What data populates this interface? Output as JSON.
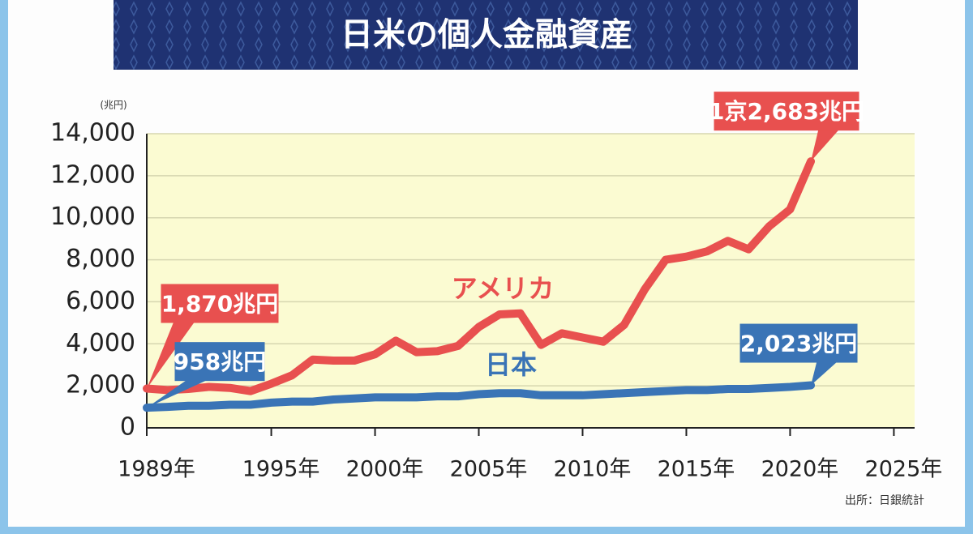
{
  "chart_data": {
    "type": "line",
    "title": "日米の個人金融資産",
    "y_label": "(兆円)",
    "source": "出所：日銀統計",
    "x": [
      1989,
      1990,
      1991,
      1992,
      1993,
      1994,
      1995,
      1996,
      1997,
      1998,
      1999,
      2000,
      2001,
      2002,
      2003,
      2004,
      2005,
      2006,
      2007,
      2008,
      2009,
      2010,
      2011,
      2012,
      2013,
      2014,
      2015,
      2016,
      2017,
      2018,
      2019,
      2020,
      2021
    ],
    "series": [
      {
        "name": "アメリカ",
        "color": "#e8504f",
        "values": [
          1870,
          1800,
          1850,
          1950,
          1900,
          1750,
          2100,
          2500,
          3250,
          3200,
          3200,
          3500,
          4150,
          3600,
          3650,
          3900,
          4800,
          5400,
          5450,
          3950,
          4500,
          4300,
          4100,
          4900,
          6600,
          8000,
          8150,
          8400,
          8900,
          8500,
          9600,
          10400,
          12683
        ],
        "value_labels": [
          "1,870兆円",
          null,
          null,
          null,
          null,
          null,
          null,
          null,
          null,
          null,
          null,
          null,
          null,
          null,
          null,
          null,
          null,
          null,
          null,
          null,
          null,
          null,
          null,
          null,
          null,
          null,
          null,
          null,
          null,
          null,
          null,
          null,
          "1京2,683兆円"
        ]
      },
      {
        "name": "日本",
        "color": "#3a74b6",
        "values": [
          958,
          1000,
          1050,
          1050,
          1100,
          1100,
          1200,
          1250,
          1250,
          1350,
          1400,
          1450,
          1450,
          1450,
          1500,
          1500,
          1600,
          1650,
          1650,
          1550,
          1550,
          1550,
          1600,
          1650,
          1700,
          1750,
          1800,
          1800,
          1850,
          1850,
          1900,
          1950,
          2023
        ],
        "value_labels": [
          "958兆円",
          null,
          null,
          null,
          null,
          null,
          null,
          null,
          null,
          null,
          null,
          null,
          null,
          null,
          null,
          null,
          null,
          null,
          null,
          null,
          null,
          null,
          null,
          null,
          null,
          null,
          null,
          null,
          null,
          null,
          null,
          null,
          "2,023兆円"
        ]
      }
    ],
    "xlim": [
      1989,
      2026
    ],
    "xticks": [
      {
        "value": 1989,
        "label": "1989年"
      },
      {
        "value": 1995,
        "label": "1995年"
      },
      {
        "value": 2000,
        "label": "2000年"
      },
      {
        "value": 2005,
        "label": "2005年"
      },
      {
        "value": 2010,
        "label": "2010年"
      },
      {
        "value": 2015,
        "label": "2015年"
      },
      {
        "value": 2020,
        "label": "2020年"
      },
      {
        "value": 2025,
        "label": "2025年"
      }
    ],
    "ylim": [
      0,
      14000
    ],
    "yticks": [
      0,
      {
        "value": 2000,
        "label": "2,000"
      },
      {
        "value": 4000,
        "label": "4,000"
      },
      {
        "value": 6000,
        "label": "6,000"
      },
      {
        "value": 8000,
        "label": "8,000"
      },
      {
        "value": 10000,
        "label": "10,000"
      },
      {
        "value": 12000,
        "label": "12,000"
      },
      {
        "value": 14000,
        "label": "14,000"
      }
    ],
    "grid": true
  }
}
